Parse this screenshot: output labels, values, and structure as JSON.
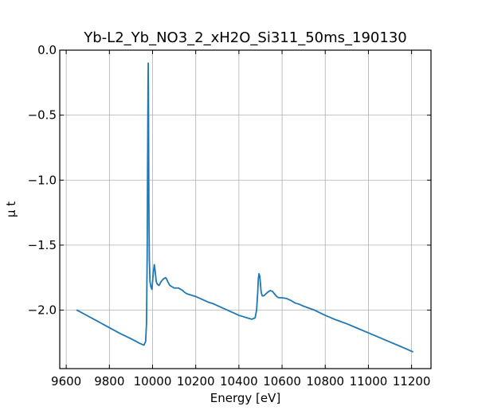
{
  "chart_data": {
    "type": "line",
    "title": "Yb-L2_Yb_NO3_2_xH2O_Si311_50ms_190130",
    "xlabel": "Energy [eV]",
    "ylabel": "μ t",
    "xlim": [
      9570,
      11290
    ],
    "ylim": [
      -2.45,
      0.0
    ],
    "xticks": [
      9600,
      9800,
      10000,
      10200,
      10400,
      10600,
      10800,
      11000,
      11200
    ],
    "yticks": [
      0.0,
      -0.5,
      -1.0,
      -1.5,
      -2.0
    ],
    "ytick_labels": [
      "0.0",
      "−0.5",
      "−1.0",
      "−1.5",
      "−2.0"
    ],
    "grid": true,
    "series": [
      {
        "color": "#1f77b4",
        "x": [
          9650,
          9700,
          9750,
          9800,
          9850,
          9900,
          9940,
          9960,
          9968,
          9972,
          9975,
          9977,
          9979,
          9980,
          9981,
          9983,
          9985,
          9988,
          9992,
          9997,
          10003,
          10008,
          10012,
          10017,
          10022,
          10030,
          10040,
          10050,
          10060,
          10065,
          10070,
          10080,
          10090,
          10100,
          10110,
          10120,
          10130,
          10140,
          10150,
          10160,
          10180,
          10200,
          10220,
          10240,
          10260,
          10280,
          10300,
          10320,
          10340,
          10360,
          10380,
          10400,
          10420,
          10440,
          10460,
          10475,
          10482,
          10487,
          10490,
          10493,
          10497,
          10500,
          10503,
          10508,
          10515,
          10525,
          10535,
          10545,
          10555,
          10565,
          10575,
          10585,
          10600,
          10620,
          10640,
          10660,
          10680,
          10700,
          10750,
          10800,
          10850,
          10900,
          10950,
          11000,
          11050,
          11100,
          11150,
          11205
        ],
        "values": [
          -2.0,
          -2.045,
          -2.09,
          -2.135,
          -2.18,
          -2.22,
          -2.255,
          -2.27,
          -2.24,
          -2.1,
          -1.6,
          -0.9,
          -0.25,
          -0.1,
          -0.35,
          -1.2,
          -1.6,
          -1.78,
          -1.82,
          -1.84,
          -1.72,
          -1.65,
          -1.7,
          -1.78,
          -1.8,
          -1.81,
          -1.78,
          -1.76,
          -1.75,
          -1.76,
          -1.78,
          -1.81,
          -1.82,
          -1.83,
          -1.83,
          -1.83,
          -1.84,
          -1.85,
          -1.865,
          -1.875,
          -1.885,
          -1.895,
          -1.91,
          -1.925,
          -1.94,
          -1.95,
          -1.965,
          -1.98,
          -1.995,
          -2.01,
          -2.025,
          -2.04,
          -2.05,
          -2.06,
          -2.07,
          -2.06,
          -2.0,
          -1.87,
          -1.76,
          -1.72,
          -1.74,
          -1.8,
          -1.86,
          -1.89,
          -1.89,
          -1.875,
          -1.86,
          -1.85,
          -1.855,
          -1.875,
          -1.895,
          -1.905,
          -1.905,
          -1.91,
          -1.925,
          -1.945,
          -1.955,
          -1.97,
          -2.0,
          -2.04,
          -2.075,
          -2.105,
          -2.14,
          -2.175,
          -2.21,
          -2.245,
          -2.28,
          -2.32
        ]
      }
    ]
  }
}
